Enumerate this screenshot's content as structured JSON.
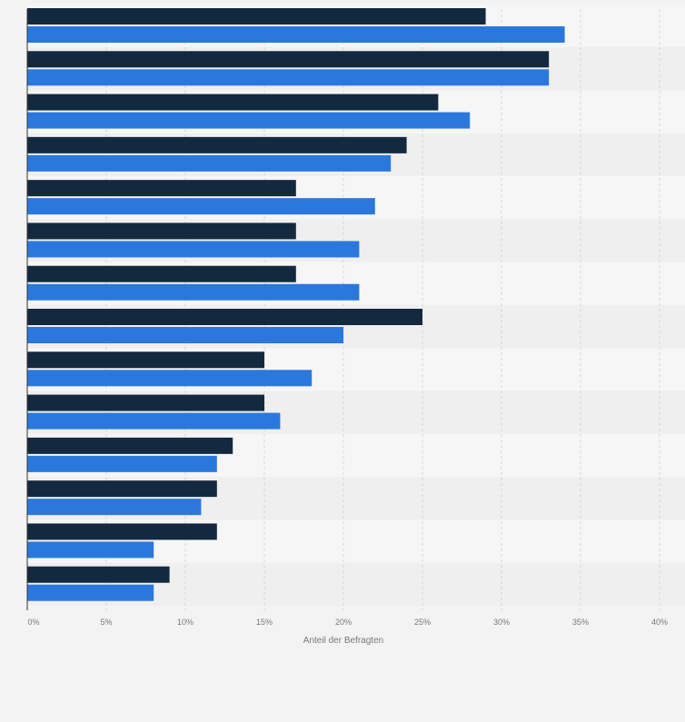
{
  "colors": {
    "series_dark": "#13293f",
    "series_blue": "#2a78dd",
    "band_light": "#f6f6f6",
    "band_dark": "#efefef",
    "grid": "#d6d6d6",
    "axis": "#333333",
    "tick_text": "#777777",
    "page_bg": "#f3f3f3"
  },
  "chart_data": {
    "type": "bar",
    "orientation": "horizontal",
    "title": "",
    "xlabel": "Anteil der Befragten",
    "ylabel": "",
    "xlim": [
      0,
      40
    ],
    "x_ticks": [
      "0%",
      "5%",
      "10%",
      "15%",
      "20%",
      "25%",
      "30%",
      "35%",
      "40%"
    ],
    "x_tick_values": [
      0,
      5,
      10,
      15,
      20,
      25,
      30,
      35,
      40
    ],
    "grid": true,
    "legend": "none",
    "categories": [
      "",
      "",
      "",
      "",
      "",
      "",
      "",
      "",
      "",
      "",
      "",
      "",
      "",
      ""
    ],
    "series": [
      {
        "values": [
          29,
          33,
          26,
          24,
          17,
          17,
          17,
          25,
          15,
          15,
          13,
          12,
          12,
          9
        ]
      },
      {
        "values": [
          34,
          33,
          28,
          23,
          22,
          21,
          21,
          20,
          18,
          16,
          12,
          11,
          8,
          8
        ]
      }
    ]
  }
}
